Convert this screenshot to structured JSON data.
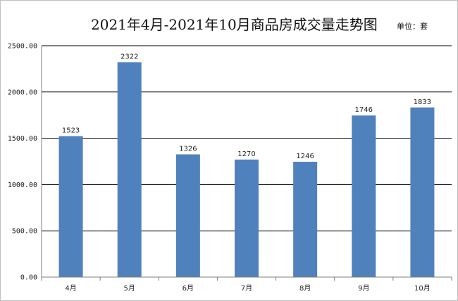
{
  "chart_data": {
    "type": "bar",
    "title": "2021年4月-2021年10月商品房成交量走势图",
    "unit_label": "单位：套",
    "xlabel": "",
    "ylabel": "",
    "categories": [
      "4月",
      "5月",
      "6月",
      "7月",
      "8月",
      "9月",
      "10月"
    ],
    "values": [
      1523,
      2322,
      1326,
      1270,
      1246,
      1746,
      1833
    ],
    "ylim": [
      0,
      2500
    ],
    "yticks": [
      0,
      500,
      1000,
      1500,
      2000,
      2500
    ],
    "ytick_labels": [
      "0.00",
      "500.00",
      "1000.00",
      "1500.00",
      "2000.00",
      "2500.00"
    ],
    "grid": true,
    "bar_color": "#4f81bd",
    "grid_color": "#000000"
  }
}
